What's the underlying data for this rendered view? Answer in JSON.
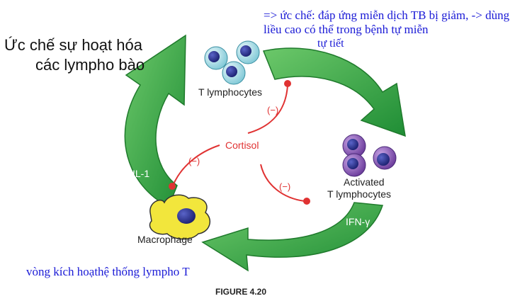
{
  "title": [
    "Ức chế sự hoạt hóa",
    "các lympho bào"
  ],
  "note_top": "=> ức chế: đáp ứng miễn dịch TB bị giảm, -> dùng liều cao có thể trong bệnh tự miễn",
  "note_overlap": "tự tiết",
  "note_bottom": "vòng kích hoạthệ thống lympho T",
  "labels": {
    "t_lymphocytes": "T lymphocytes",
    "activated": [
      "Activated",
      "T lymphocytes"
    ],
    "macrophage": "Macrophage",
    "cortisol": "Cortisol",
    "il1": "IL-1",
    "ifn": "IFN-γ",
    "inhibit": "(−)"
  },
  "figure_caption": "FIGURE 4.20",
  "colors": {
    "arrow_fill": "#3cae4a",
    "arrow_edge": "#1f7a2c",
    "inhibit_red": "#e03232",
    "note_blue": "#1a1ad6",
    "t_cell_outer": "#bfe3ea",
    "activated_outer": "#8a5bb5",
    "cell_nucleus": "#2e3690",
    "macrophage_body": "#f2e63c"
  }
}
